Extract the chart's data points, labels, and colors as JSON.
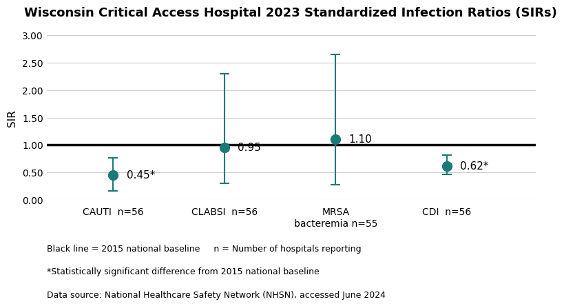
{
  "title": "Wisconsin Critical Access Hospital 2023 Standardized Infection Ratios (SIRs)",
  "ylabel": "SIR",
  "categories": [
    "CAUTI  n=56",
    "CLABSI  n=56",
    "MRSA\nbacteremia n=55",
    "CDI  n=56"
  ],
  "x_positions": [
    1,
    2,
    3,
    4
  ],
  "values": [
    0.45,
    0.95,
    1.1,
    0.62
  ],
  "lower_ci": [
    0.16,
    0.3,
    0.28,
    0.46
  ],
  "upper_ci": [
    0.76,
    2.3,
    2.65,
    0.82
  ],
  "labels": [
    "0.45*",
    "0.95",
    "1.10",
    "0.62*"
  ],
  "marker_color": "#1a7a78",
  "error_color": "#1a7a78",
  "baseline": 1.0,
  "ylim": [
    0.0,
    3.0
  ],
  "yticks": [
    0.0,
    0.5,
    1.0,
    1.5,
    2.0,
    2.5,
    3.0
  ],
  "footnote_lines": [
    "Black line = 2015 national baseline     n = Number of hospitals reporting",
    "*Statistically significant difference from 2015 national baseline",
    "Data source: National Healthcare Safety Network (NHSN), accessed June 2024"
  ],
  "title_fontsize": 13,
  "axis_label_fontsize": 11,
  "tick_fontsize": 10,
  "footnote_fontsize": 9,
  "marker_size": 10,
  "capsize": 5,
  "linewidth": 1.5,
  "background_color": "#ffffff"
}
